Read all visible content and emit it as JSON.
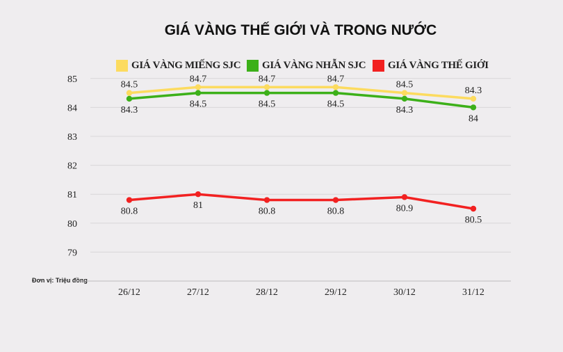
{
  "chart_data": {
    "type": "line",
    "title": "GIÁ VÀNG THẾ GIỚI VÀ TRONG NƯỚC",
    "unit_note": "Đơn vị: Triệu đồng",
    "categories": [
      "26/12",
      "27/12",
      "28/12",
      "29/12",
      "30/12",
      "31/12"
    ],
    "yticks": [
      79,
      80,
      81,
      82,
      83,
      84,
      85
    ],
    "ylim": [
      78,
      85
    ],
    "grid": true,
    "legend_position": "top",
    "series": [
      {
        "name": "GIÁ VÀNG MIẾNG SJC",
        "color": "#fcdb5f",
        "values": [
          84.5,
          84.7,
          84.7,
          84.7,
          84.5,
          84.3
        ],
        "labels": [
          "84.5",
          "84.7",
          "84.7",
          "84.7",
          "84.5",
          "84.3"
        ],
        "label_pos": "above"
      },
      {
        "name": "GIÁ VÀNG NHẪN SJC",
        "color": "#3cb019",
        "values": [
          84.3,
          84.5,
          84.5,
          84.5,
          84.3,
          84
        ],
        "labels": [
          "84.3",
          "84.5",
          "84.5",
          "84.5",
          "84.3",
          "84"
        ],
        "label_pos": "below"
      },
      {
        "name": "GIÁ VÀNG THẾ GIỚI",
        "color": "#f22121",
        "values": [
          80.8,
          81,
          80.8,
          80.8,
          80.9,
          80.5
        ],
        "labels": [
          "80.8",
          "81",
          "80.8",
          "80.8",
          "80.9",
          "80.5"
        ],
        "label_pos": "below"
      }
    ]
  }
}
